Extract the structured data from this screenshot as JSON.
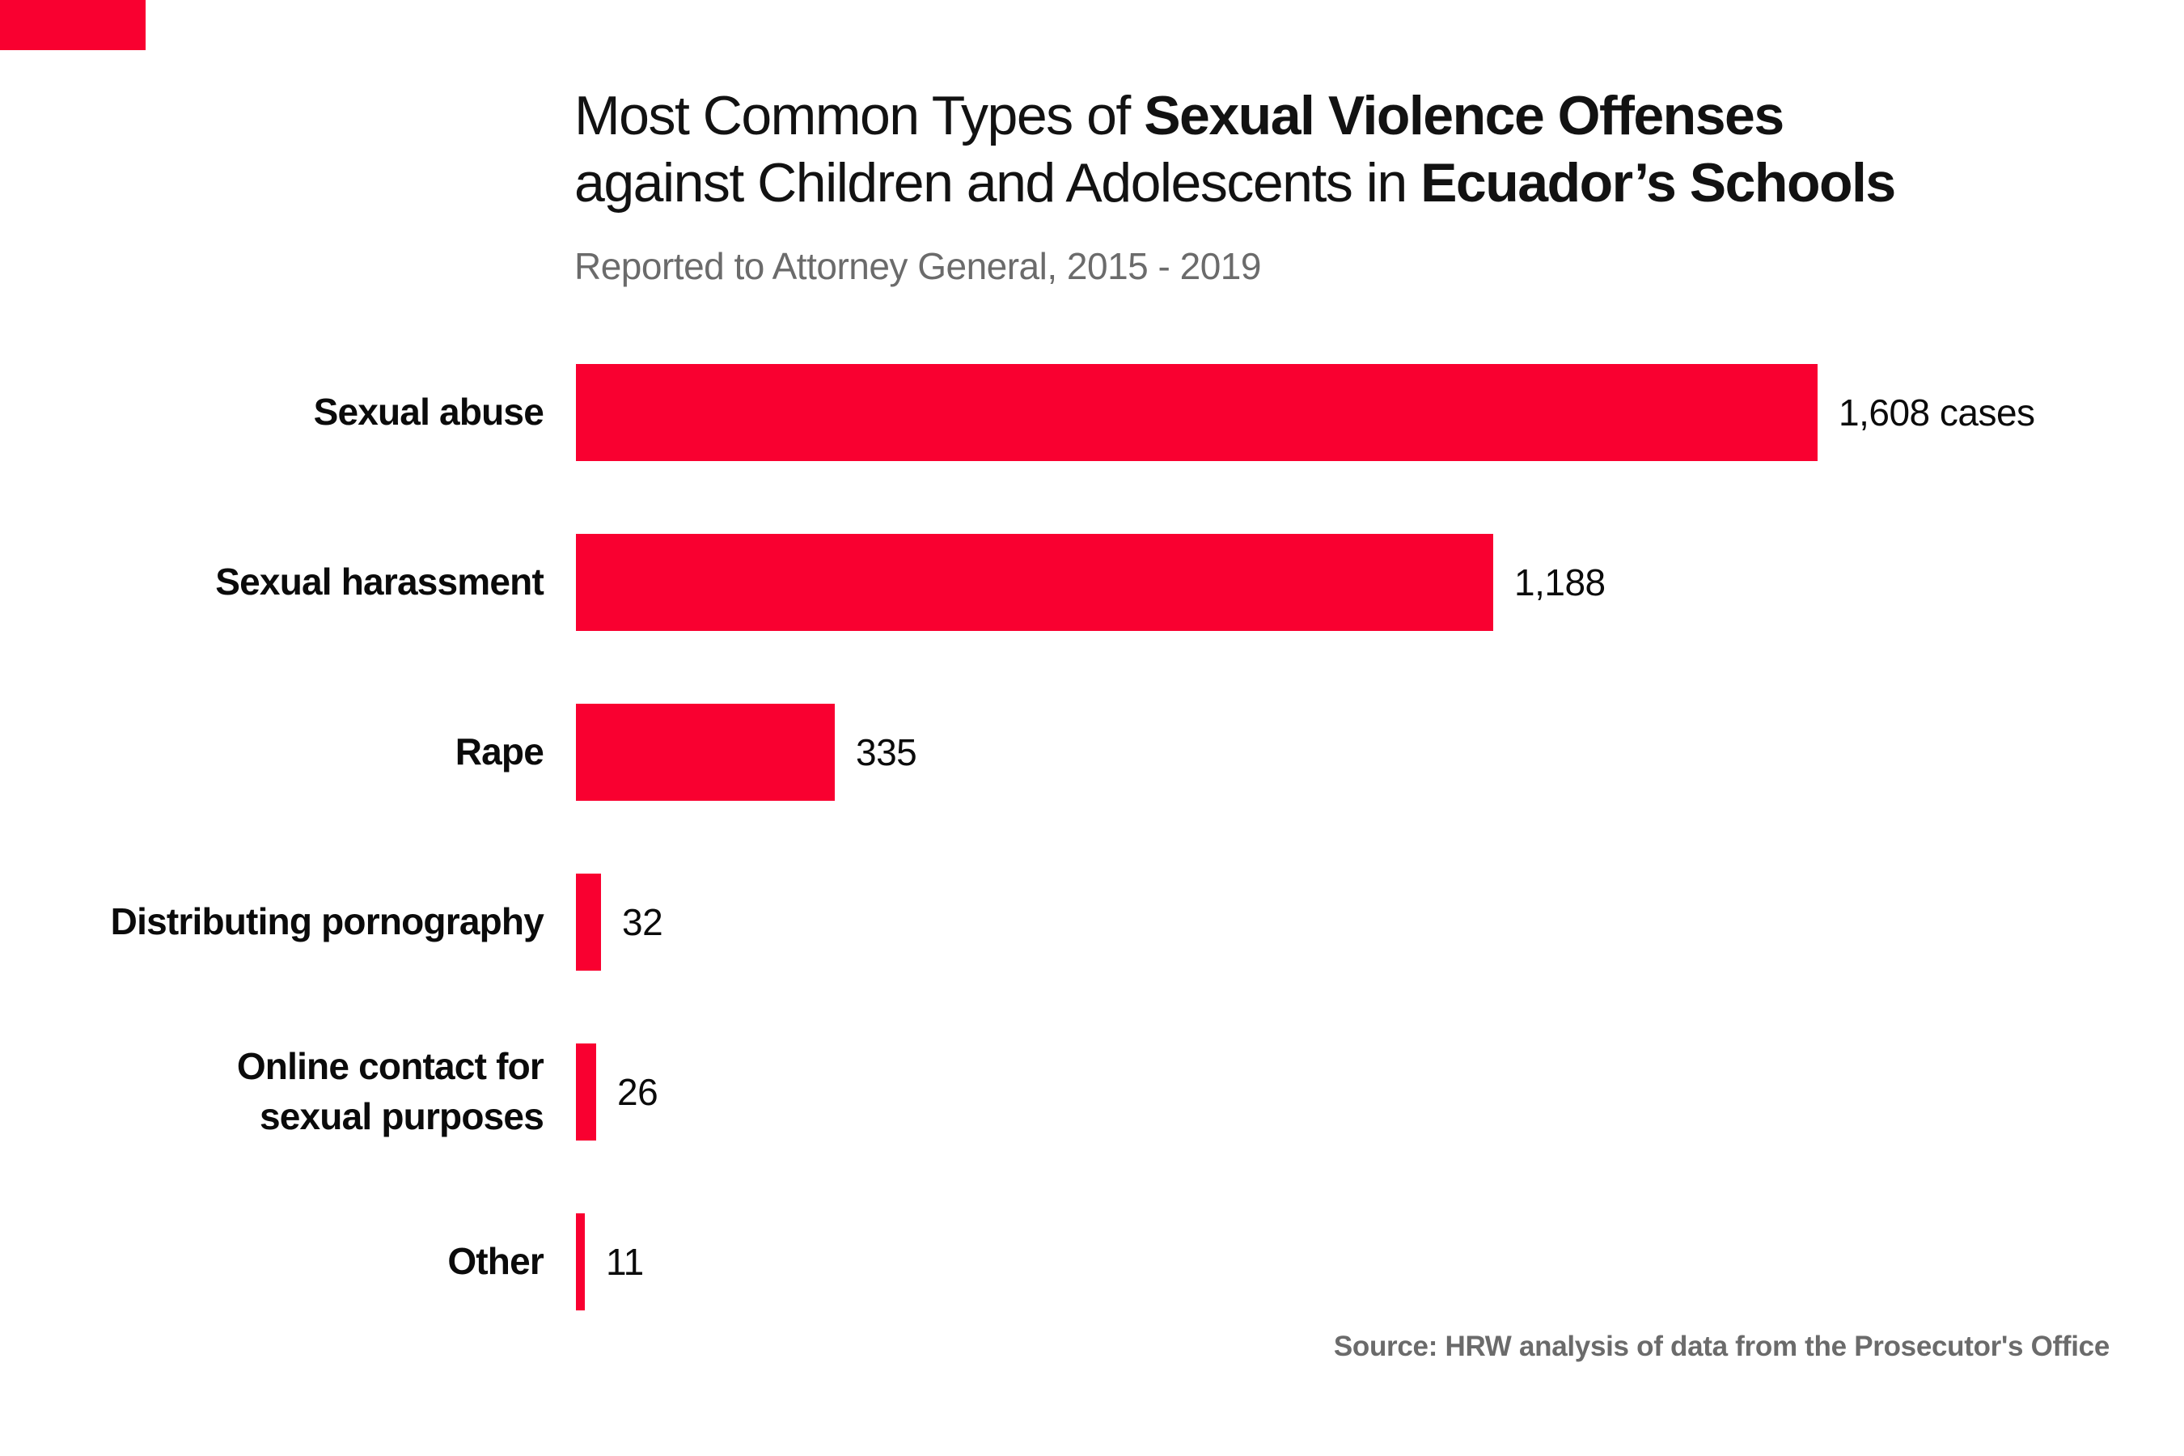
{
  "page": {
    "background": "#ffffff"
  },
  "brand": {
    "color": "#F90030",
    "name": "hrw-red-corner-block"
  },
  "header": {
    "title_line1": {
      "regular": "Most Common Types of ",
      "bold": "Sexual Violence Offenses"
    },
    "title_line2": {
      "regular": "against Children and Adolescents in ",
      "bold": "Ecuador’s Schools"
    },
    "subtitle": "Reported to Attorney General, 2015 - 2019"
  },
  "chart_data": {
    "type": "bar",
    "orientation": "horizontal",
    "title": "Most Common Types of Sexual Violence Offenses against Children and Adolescents in Ecuador’s Schools",
    "subtitle": "Reported to Attorney General, 2015 - 2019",
    "categories": [
      "Sexual abuse",
      "Sexual harassment",
      "Rape",
      "Distributing pornography",
      "Online contact for\nsexual purposes",
      "Other"
    ],
    "values": [
      1608,
      1188,
      335,
      32,
      26,
      11
    ],
    "value_labels": [
      "1,608 cases",
      "1,188",
      "335",
      "32",
      "26",
      "11"
    ],
    "unit": "cases",
    "xlim": [
      0,
      1608
    ],
    "grid": false,
    "legend": false,
    "bar_color": "#F90030",
    "label_color": "#0b0b0b"
  },
  "source": "Source: HRW analysis of data from the Prosecutor's Office"
}
